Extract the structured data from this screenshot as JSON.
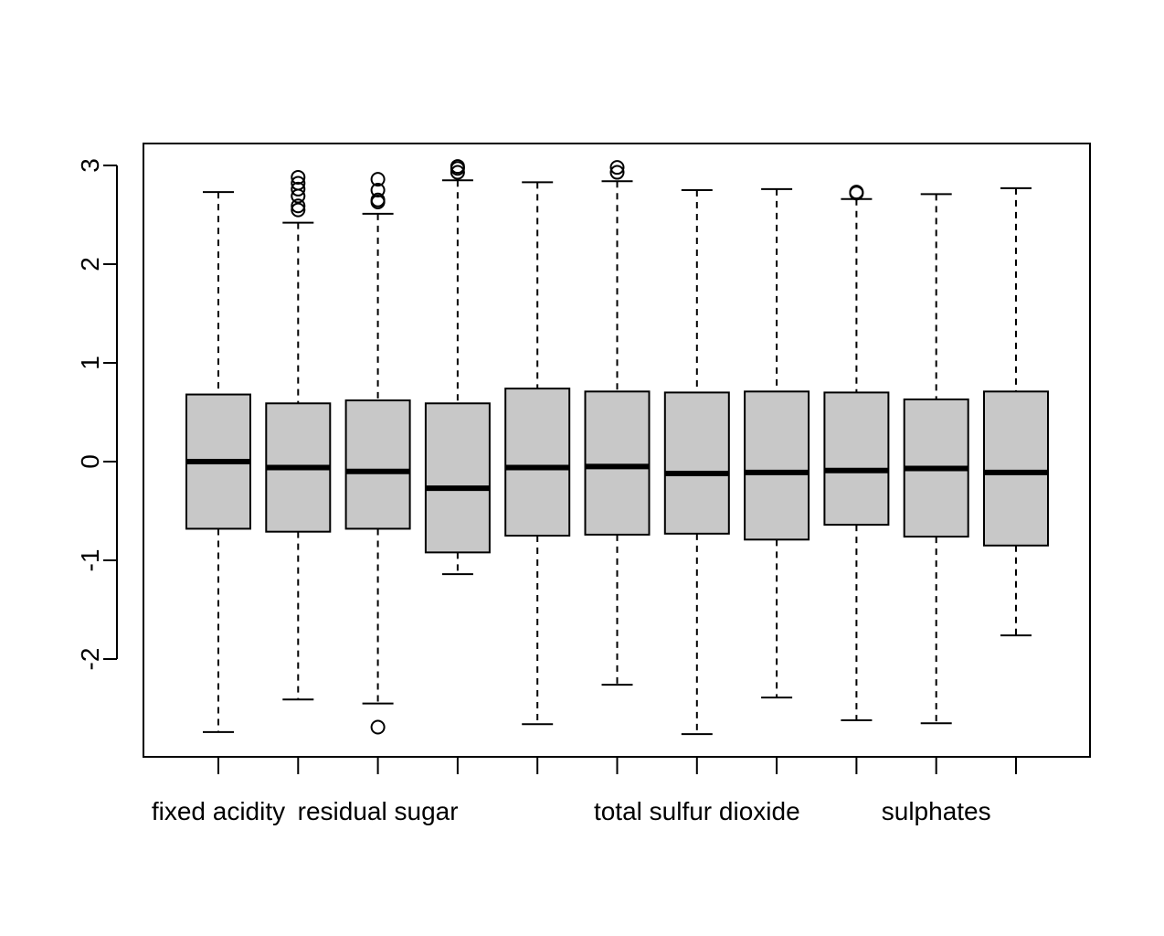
{
  "chart_data": {
    "type": "box",
    "title": "",
    "xlabel": "",
    "ylabel": "",
    "ylim": [
      -3.0,
      3.2
    ],
    "y_ticks": [
      "-2",
      "-1",
      "0",
      "1",
      "2",
      "3"
    ],
    "x_tick_labels": [
      "fixed acidity",
      "",
      "residual sugar",
      "",
      "",
      "",
      "total sulfur dioxide",
      "",
      "",
      "sulphates",
      ""
    ],
    "box_fill": "#c8c8c8",
    "boxes": [
      {
        "label": "fixed acidity",
        "whisker_low": -2.74,
        "q1": -0.68,
        "median": 0.0,
        "q3": 0.68,
        "whisker_high": 2.73,
        "outliers": []
      },
      {
        "label": "",
        "whisker_low": -2.41,
        "q1": -0.71,
        "median": -0.06,
        "q3": 0.59,
        "whisker_high": 2.42,
        "outliers": [
          2.55,
          2.59,
          2.69,
          2.76,
          2.82,
          2.88
        ]
      },
      {
        "label": "residual sugar",
        "whisker_low": -2.45,
        "q1": -0.68,
        "median": -0.1,
        "q3": 0.62,
        "whisker_high": 2.51,
        "outliers": [
          -2.69,
          2.63,
          2.65,
          2.75,
          2.86
        ]
      },
      {
        "label": "",
        "whisker_low": -1.14,
        "q1": -0.92,
        "median": -0.27,
        "q3": 0.59,
        "whisker_high": 2.85,
        "outliers": [
          2.93,
          2.97,
          2.99
        ]
      },
      {
        "label": "",
        "whisker_low": -2.66,
        "q1": -0.75,
        "median": -0.06,
        "q3": 0.74,
        "whisker_high": 2.83,
        "outliers": []
      },
      {
        "label": "",
        "whisker_low": -2.26,
        "q1": -0.74,
        "median": -0.05,
        "q3": 0.71,
        "whisker_high": 2.84,
        "outliers": [
          2.93,
          2.98
        ]
      },
      {
        "label": "total sulfur dioxide",
        "whisker_low": -2.76,
        "q1": -0.73,
        "median": -0.12,
        "q3": 0.7,
        "whisker_high": 2.75,
        "outliers": []
      },
      {
        "label": "",
        "whisker_low": -2.39,
        "q1": -0.79,
        "median": -0.11,
        "q3": 0.71,
        "whisker_high": 2.76,
        "outliers": []
      },
      {
        "label": "",
        "whisker_low": -2.62,
        "q1": -0.64,
        "median": -0.09,
        "q3": 0.7,
        "whisker_high": 2.66,
        "outliers": [
          2.72,
          2.73
        ]
      },
      {
        "label": "sulphates",
        "whisker_low": -2.65,
        "q1": -0.76,
        "median": -0.07,
        "q3": 0.63,
        "whisker_high": 2.71,
        "outliers": []
      },
      {
        "label": "",
        "whisker_low": -1.76,
        "q1": -0.85,
        "median": -0.11,
        "q3": 0.71,
        "whisker_high": 2.77,
        "outliers": []
      }
    ]
  }
}
